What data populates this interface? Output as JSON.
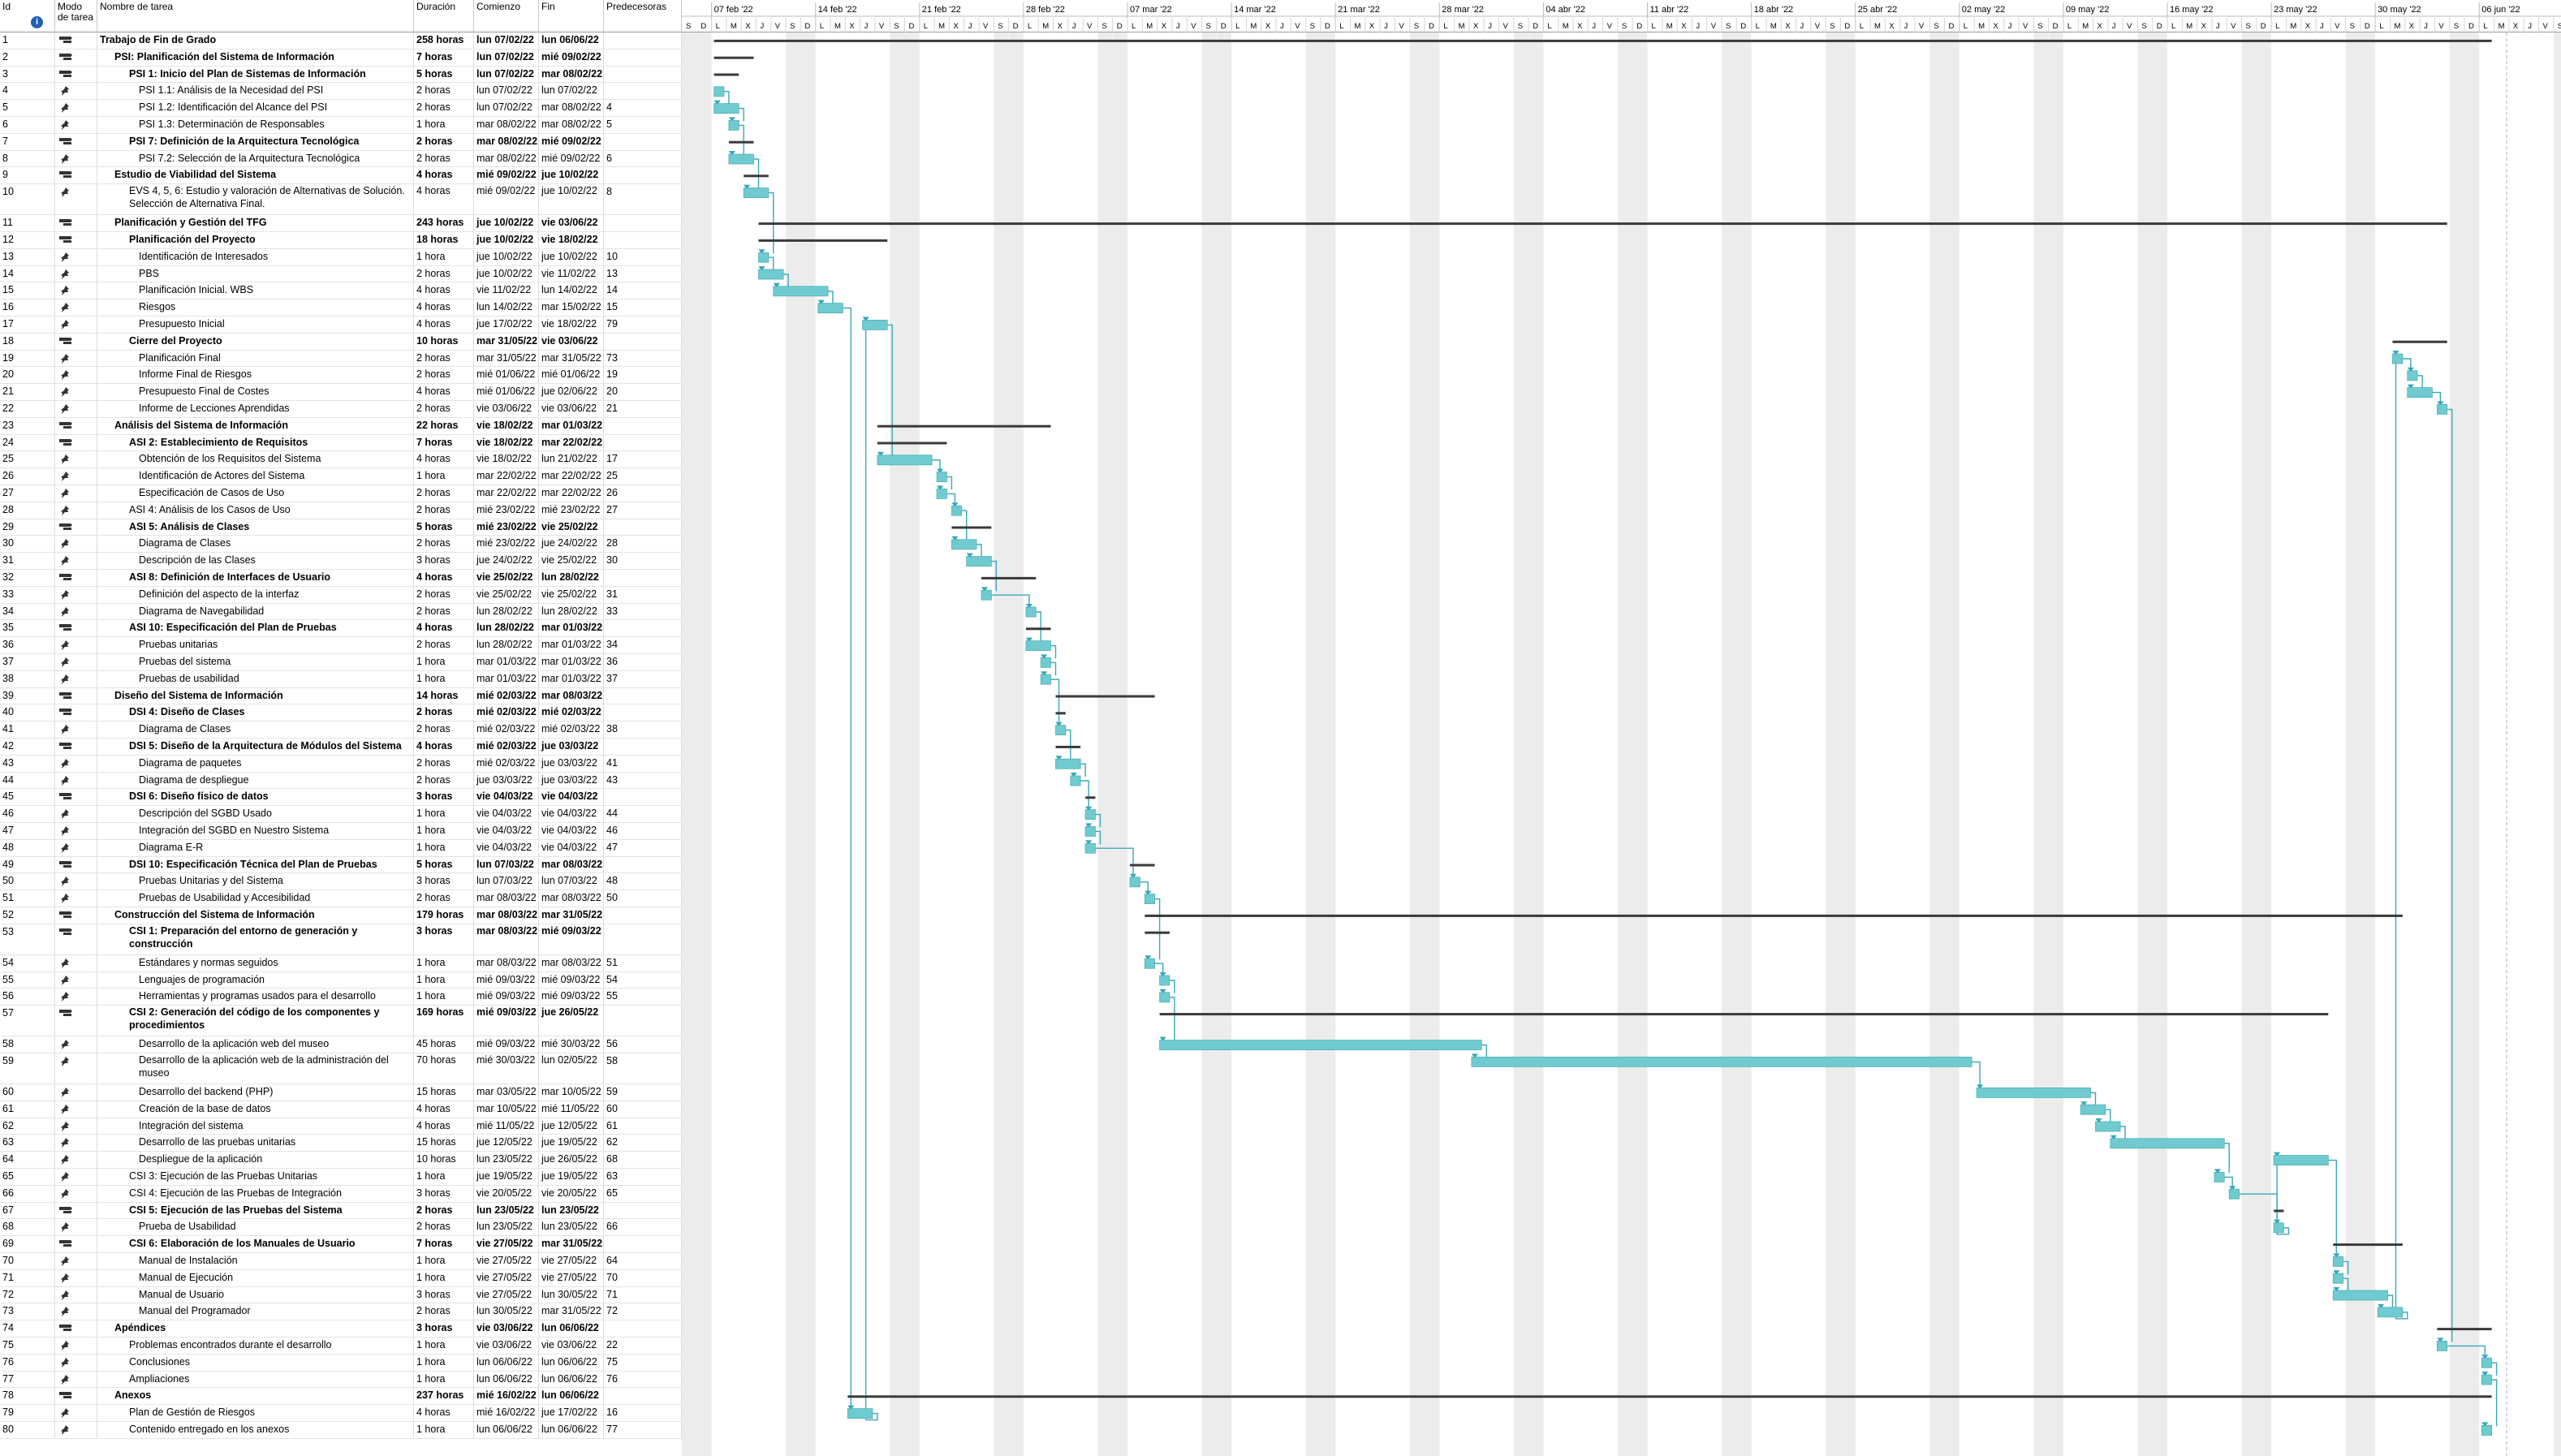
{
  "columns": {
    "id": "Id",
    "info": "i",
    "mode": "Modo de tarea",
    "name": "Nombre de tarea",
    "duration": "Duración",
    "start": "Comienzo",
    "end": "Fin",
    "pred": "Predecesoras"
  },
  "colors": {
    "bar": "#6fcbd0",
    "summary": "#3a3a3a",
    "link": "#3aa7ba",
    "weekend": "#ececec"
  },
  "timeline": {
    "weeks": [
      "07 feb '22",
      "14 feb '22",
      "21 feb '22",
      "28 feb '22",
      "07 mar '22",
      "14 mar '22",
      "21 mar '22",
      "28 mar '22",
      "04 abr '22",
      "11 abr '22",
      "18 abr '22",
      "25 abr '22",
      "02 may '22",
      "09 may '22",
      "16 may '22",
      "23 may '22",
      "30 may '22",
      "06 jun '22"
    ],
    "day_letters": [
      "L",
      "M",
      "X",
      "J",
      "V",
      "S",
      "D"
    ],
    "lead_letters": [
      "S",
      "D"
    ]
  },
  "tasks": [
    {
      "id": "1",
      "name": "Trabajo de Fin de Grado",
      "dur": "258 horas",
      "start": "lun 07/02/22",
      "end": "lun 06/06/22",
      "pred": "",
      "level": 0,
      "summary": true
    },
    {
      "id": "2",
      "name": "PSI: Planificación del Sistema de Información",
      "dur": "7 horas",
      "start": "lun 07/02/22",
      "end": "mié 09/02/22",
      "pred": "",
      "level": 1,
      "summary": true
    },
    {
      "id": "3",
      "name": "PSI 1: Inicio del Plan de Sistemas de Información",
      "dur": "5 horas",
      "start": "lun 07/02/22",
      "end": "mar 08/02/22",
      "pred": "",
      "level": 2,
      "summary": true
    },
    {
      "id": "4",
      "name": "PSI 1.1: Análisis de la Necesidad del PSI",
      "dur": "2 horas",
      "start": "lun 07/02/22",
      "end": "lun 07/02/22",
      "pred": "",
      "level": 3,
      "summary": false
    },
    {
      "id": "5",
      "name": "PSI 1.2: Identificación del Alcance del PSI",
      "dur": "2 horas",
      "start": "lun 07/02/22",
      "end": "mar 08/02/22",
      "pred": "4",
      "level": 3,
      "summary": false
    },
    {
      "id": "6",
      "name": "PSI 1.3: Determinación de Responsables",
      "dur": "1 hora",
      "start": "mar 08/02/22",
      "end": "mar 08/02/22",
      "pred": "5",
      "level": 3,
      "summary": false
    },
    {
      "id": "7",
      "name": "PSI 7: Definición de la Arquitectura Tecnológica",
      "dur": "2 horas",
      "start": "mar 08/02/22",
      "end": "mié 09/02/22",
      "pred": "",
      "level": 2,
      "summary": true
    },
    {
      "id": "8",
      "name": "PSI 7.2: Selección de la Arquitectura Tecnológica",
      "dur": "2 horas",
      "start": "mar 08/02/22",
      "end": "mié 09/02/22",
      "pred": "6",
      "level": 3,
      "summary": false
    },
    {
      "id": "9",
      "name": "Estudio de Viabilidad del Sistema",
      "dur": "4 horas",
      "start": "mié 09/02/22",
      "end": "jue 10/02/22",
      "pred": "",
      "level": 1,
      "summary": true
    },
    {
      "id": "10",
      "name": "EVS 4, 5, 6: Estudio y valoración de Alternativas de Solución. Selección de Alternativa Final.",
      "dur": "4 horas",
      "start": "mié 09/02/22",
      "end": "jue 10/02/22",
      "pred": "8",
      "level": 2,
      "summary": false,
      "tall": true
    },
    {
      "id": "11",
      "name": "Planificación y Gestión del TFG",
      "dur": "243 horas",
      "start": "jue 10/02/22",
      "end": "vie 03/06/22",
      "pred": "",
      "level": 1,
      "summary": true
    },
    {
      "id": "12",
      "name": "Planificación del Proyecto",
      "dur": "18 horas",
      "start": "jue 10/02/22",
      "end": "vie 18/02/22",
      "pred": "",
      "level": 2,
      "summary": true
    },
    {
      "id": "13",
      "name": "Identificación de Interesados",
      "dur": "1 hora",
      "start": "jue 10/02/22",
      "end": "jue 10/02/22",
      "pred": "10",
      "level": 3,
      "summary": false
    },
    {
      "id": "14",
      "name": "PBS",
      "dur": "2 horas",
      "start": "jue 10/02/22",
      "end": "vie 11/02/22",
      "pred": "13",
      "level": 3,
      "summary": false
    },
    {
      "id": "15",
      "name": "Planificación Inicial. WBS",
      "dur": "4 horas",
      "start": "vie 11/02/22",
      "end": "lun 14/02/22",
      "pred": "14",
      "level": 3,
      "summary": false
    },
    {
      "id": "16",
      "name": "Riesgos",
      "dur": "4 horas",
      "start": "lun 14/02/22",
      "end": "mar 15/02/22",
      "pred": "15",
      "level": 3,
      "summary": false
    },
    {
      "id": "17",
      "name": "Presupuesto Inicial",
      "dur": "4 horas",
      "start": "jue 17/02/22",
      "end": "vie 18/02/22",
      "pred": "79",
      "level": 3,
      "summary": false
    },
    {
      "id": "18",
      "name": "Cierre del Proyecto",
      "dur": "10 horas",
      "start": "mar 31/05/22",
      "end": "vie 03/06/22",
      "pred": "",
      "level": 2,
      "summary": true
    },
    {
      "id": "19",
      "name": "Planificación Final",
      "dur": "2 horas",
      "start": "mar 31/05/22",
      "end": "mar 31/05/22",
      "pred": "73",
      "level": 3,
      "summary": false
    },
    {
      "id": "20",
      "name": "Informe Final de Riesgos",
      "dur": "2 horas",
      "start": "mié 01/06/22",
      "end": "mié 01/06/22",
      "pred": "19",
      "level": 3,
      "summary": false
    },
    {
      "id": "21",
      "name": "Presupuesto Final de Costes",
      "dur": "4 horas",
      "start": "mié 01/06/22",
      "end": "jue 02/06/22",
      "pred": "20",
      "level": 3,
      "summary": false
    },
    {
      "id": "22",
      "name": "Informe de Lecciones Aprendidas",
      "dur": "2 horas",
      "start": "vie 03/06/22",
      "end": "vie 03/06/22",
      "pred": "21",
      "level": 3,
      "summary": false
    },
    {
      "id": "23",
      "name": "Análisis del Sistema de Información",
      "dur": "22 horas",
      "start": "vie 18/02/22",
      "end": "mar 01/03/22",
      "pred": "",
      "level": 1,
      "summary": true
    },
    {
      "id": "24",
      "name": "ASI 2: Establecimiento de Requisitos",
      "dur": "7 horas",
      "start": "vie 18/02/22",
      "end": "mar 22/02/22",
      "pred": "",
      "level": 2,
      "summary": true
    },
    {
      "id": "25",
      "name": "Obtención de los Requisitos del Sistema",
      "dur": "4 horas",
      "start": "vie 18/02/22",
      "end": "lun 21/02/22",
      "pred": "17",
      "level": 3,
      "summary": false
    },
    {
      "id": "26",
      "name": "Identificación de Actores del Sistema",
      "dur": "1 hora",
      "start": "mar 22/02/22",
      "end": "mar 22/02/22",
      "pred": "25",
      "level": 3,
      "summary": false
    },
    {
      "id": "27",
      "name": "Especificación de Casos de Uso",
      "dur": "2 horas",
      "start": "mar 22/02/22",
      "end": "mar 22/02/22",
      "pred": "26",
      "level": 3,
      "summary": false
    },
    {
      "id": "28",
      "name": "ASI 4: Análisis de los Casos de Uso",
      "dur": "2 horas",
      "start": "mié 23/02/22",
      "end": "mié 23/02/22",
      "pred": "27",
      "level": 2,
      "summary": false
    },
    {
      "id": "29",
      "name": "ASI 5: Análisis de Clases",
      "dur": "5 horas",
      "start": "mié 23/02/22",
      "end": "vie 25/02/22",
      "pred": "",
      "level": 2,
      "summary": true
    },
    {
      "id": "30",
      "name": "Diagrama de Clases",
      "dur": "2 horas",
      "start": "mié 23/02/22",
      "end": "jue 24/02/22",
      "pred": "28",
      "level": 3,
      "summary": false
    },
    {
      "id": "31",
      "name": "Descripción de las Clases",
      "dur": "3 horas",
      "start": "jue 24/02/22",
      "end": "vie 25/02/22",
      "pred": "30",
      "level": 3,
      "summary": false
    },
    {
      "id": "32",
      "name": "ASI 8: Definición de Interfaces de Usuario",
      "dur": "4 horas",
      "start": "vie 25/02/22",
      "end": "lun 28/02/22",
      "pred": "",
      "level": 2,
      "summary": true
    },
    {
      "id": "33",
      "name": "Definición del aspecto de la interfaz",
      "dur": "2 horas",
      "start": "vie 25/02/22",
      "end": "vie 25/02/22",
      "pred": "31",
      "level": 3,
      "summary": false
    },
    {
      "id": "34",
      "name": "Diagrama de Navegabilidad",
      "dur": "2 horas",
      "start": "lun 28/02/22",
      "end": "lun 28/02/22",
      "pred": "33",
      "level": 3,
      "summary": false
    },
    {
      "id": "35",
      "name": "ASI 10: Especificación del Plan de Pruebas",
      "dur": "4 horas",
      "start": "lun 28/02/22",
      "end": "mar 01/03/22",
      "pred": "",
      "level": 2,
      "summary": true
    },
    {
      "id": "36",
      "name": "Pruebas unitarias",
      "dur": "2 horas",
      "start": "lun 28/02/22",
      "end": "mar 01/03/22",
      "pred": "34",
      "level": 3,
      "summary": false
    },
    {
      "id": "37",
      "name": "Pruebas del sistema",
      "dur": "1 hora",
      "start": "mar 01/03/22",
      "end": "mar 01/03/22",
      "pred": "36",
      "level": 3,
      "summary": false
    },
    {
      "id": "38",
      "name": "Pruebas de usabilidad",
      "dur": "1 hora",
      "start": "mar 01/03/22",
      "end": "mar 01/03/22",
      "pred": "37",
      "level": 3,
      "summary": false
    },
    {
      "id": "39",
      "name": "Diseño del Sistema de Información",
      "dur": "14 horas",
      "start": "mié 02/03/22",
      "end": "mar 08/03/22",
      "pred": "",
      "level": 1,
      "summary": true
    },
    {
      "id": "40",
      "name": "DSI 4: Diseño de Clases",
      "dur": "2 horas",
      "start": "mié 02/03/22",
      "end": "mié 02/03/22",
      "pred": "",
      "level": 2,
      "summary": true
    },
    {
      "id": "41",
      "name": "Diagrama de Clases",
      "dur": "2 horas",
      "start": "mié 02/03/22",
      "end": "mié 02/03/22",
      "pred": "38",
      "level": 3,
      "summary": false
    },
    {
      "id": "42",
      "name": "DSI 5: Diseño de la Arquitectura de Módulos del Sistema",
      "dur": "4 horas",
      "start": "mié 02/03/22",
      "end": "jue 03/03/22",
      "pred": "",
      "level": 2,
      "summary": true
    },
    {
      "id": "43",
      "name": "Diagrama de paquetes",
      "dur": "2 horas",
      "start": "mié 02/03/22",
      "end": "jue 03/03/22",
      "pred": "41",
      "level": 3,
      "summary": false
    },
    {
      "id": "44",
      "name": "Diagrama de despliegue",
      "dur": "2 horas",
      "start": "jue 03/03/22",
      "end": "jue 03/03/22",
      "pred": "43",
      "level": 3,
      "summary": false
    },
    {
      "id": "45",
      "name": "DSI 6: Diseño físico de datos",
      "dur": "3 horas",
      "start": "vie 04/03/22",
      "end": "vie 04/03/22",
      "pred": "",
      "level": 2,
      "summary": true
    },
    {
      "id": "46",
      "name": "Descripción del SGBD Usado",
      "dur": "1 hora",
      "start": "vie 04/03/22",
      "end": "vie 04/03/22",
      "pred": "44",
      "level": 3,
      "summary": false
    },
    {
      "id": "47",
      "name": "Integración del SGBD en Nuestro Sistema",
      "dur": "1 hora",
      "start": "vie 04/03/22",
      "end": "vie 04/03/22",
      "pred": "46",
      "level": 3,
      "summary": false
    },
    {
      "id": "48",
      "name": "Diagrama E-R",
      "dur": "1 hora",
      "start": "vie 04/03/22",
      "end": "vie 04/03/22",
      "pred": "47",
      "level": 3,
      "summary": false
    },
    {
      "id": "49",
      "name": "DSI 10: Especificación Técnica del Plan de Pruebas",
      "dur": "5 horas",
      "start": "lun 07/03/22",
      "end": "mar 08/03/22",
      "pred": "",
      "level": 2,
      "summary": true
    },
    {
      "id": "50",
      "name": "Pruebas Unitarias y del Sistema",
      "dur": "3 horas",
      "start": "lun 07/03/22",
      "end": "lun 07/03/22",
      "pred": "48",
      "level": 3,
      "summary": false
    },
    {
      "id": "51",
      "name": "Pruebas de Usabilidad y Accesibilidad",
      "dur": "2 horas",
      "start": "mar 08/03/22",
      "end": "mar 08/03/22",
      "pred": "50",
      "level": 3,
      "summary": false
    },
    {
      "id": "52",
      "name": "Construcción del Sistema de Información",
      "dur": "179 horas",
      "start": "mar 08/03/22",
      "end": "mar 31/05/22",
      "pred": "",
      "level": 1,
      "summary": true
    },
    {
      "id": "53",
      "name": "CSI 1: Preparación del entorno de generación y construcción",
      "dur": "3 horas",
      "start": "mar 08/03/22",
      "end": "mié 09/03/22",
      "pred": "",
      "level": 2,
      "summary": true,
      "tall": true
    },
    {
      "id": "54",
      "name": "Estándares y normas seguidos",
      "dur": "1 hora",
      "start": "mar 08/03/22",
      "end": "mar 08/03/22",
      "pred": "51",
      "level": 3,
      "summary": false
    },
    {
      "id": "55",
      "name": "Lenguajes de programación",
      "dur": "1 hora",
      "start": "mié 09/03/22",
      "end": "mié 09/03/22",
      "pred": "54",
      "level": 3,
      "summary": false
    },
    {
      "id": "56",
      "name": "Herramientas y programas usados para el desarrollo",
      "dur": "1 hora",
      "start": "mié 09/03/22",
      "end": "mié 09/03/22",
      "pred": "55",
      "level": 3,
      "summary": false
    },
    {
      "id": "57",
      "name": "CSI 2: Generación del código de los componentes y procedimientos",
      "dur": "169 horas",
      "start": "mié 09/03/22",
      "end": "jue 26/05/22",
      "pred": "",
      "level": 2,
      "summary": true,
      "tall": true
    },
    {
      "id": "58",
      "name": "Desarrollo de la aplicación web del museo",
      "dur": "45 horas",
      "start": "mié 09/03/22",
      "end": "mié 30/03/22",
      "pred": "56",
      "level": 3,
      "summary": false
    },
    {
      "id": "59",
      "name": "Desarrollo de la aplicación web de la administración del museo",
      "dur": "70 horas",
      "start": "mié 30/03/22",
      "end": "lun 02/05/22",
      "pred": "58",
      "level": 3,
      "summary": false,
      "tall": true
    },
    {
      "id": "60",
      "name": "Desarrollo del backend (PHP)",
      "dur": "15 horas",
      "start": "mar 03/05/22",
      "end": "mar 10/05/22",
      "pred": "59",
      "level": 3,
      "summary": false
    },
    {
      "id": "61",
      "name": "Creación de la base de datos",
      "dur": "4 horas",
      "start": "mar 10/05/22",
      "end": "mié 11/05/22",
      "pred": "60",
      "level": 3,
      "summary": false
    },
    {
      "id": "62",
      "name": "Integración del sistema",
      "dur": "4 horas",
      "start": "mié 11/05/22",
      "end": "jue 12/05/22",
      "pred": "61",
      "level": 3,
      "summary": false
    },
    {
      "id": "63",
      "name": "Desarrollo de las pruebas unitarias",
      "dur": "15 horas",
      "start": "jue 12/05/22",
      "end": "jue 19/05/22",
      "pred": "62",
      "level": 3,
      "summary": false
    },
    {
      "id": "64",
      "name": "Despliegue de la aplicación",
      "dur": "10 horas",
      "start": "lun 23/05/22",
      "end": "jue 26/05/22",
      "pred": "68",
      "level": 3,
      "summary": false
    },
    {
      "id": "65",
      "name": "CSI 3: Ejecución de las Pruebas Unitarias",
      "dur": "1 hora",
      "start": "jue 19/05/22",
      "end": "jue 19/05/22",
      "pred": "63",
      "level": 2,
      "summary": false
    },
    {
      "id": "66",
      "name": "CSI 4: Ejecución de las Pruebas de Integración",
      "dur": "3 horas",
      "start": "vie 20/05/22",
      "end": "vie 20/05/22",
      "pred": "65",
      "level": 2,
      "summary": false
    },
    {
      "id": "67",
      "name": "CSI 5: Ejecución de las Pruebas del Sistema",
      "dur": "2 horas",
      "start": "lun 23/05/22",
      "end": "lun 23/05/22",
      "pred": "",
      "level": 2,
      "summary": true
    },
    {
      "id": "68",
      "name": "Prueba de Usabilidad",
      "dur": "2 horas",
      "start": "lun 23/05/22",
      "end": "lun 23/05/22",
      "pred": "66",
      "level": 3,
      "summary": false
    },
    {
      "id": "69",
      "name": "CSI 6: Elaboración de los Manuales de Usuario",
      "dur": "7 horas",
      "start": "vie 27/05/22",
      "end": "mar 31/05/22",
      "pred": "",
      "level": 2,
      "summary": true
    },
    {
      "id": "70",
      "name": "Manual de Instalación",
      "dur": "1 hora",
      "start": "vie 27/05/22",
      "end": "vie 27/05/22",
      "pred": "64",
      "level": 3,
      "summary": false
    },
    {
      "id": "71",
      "name": "Manual de Ejecución",
      "dur": "1 hora",
      "start": "vie 27/05/22",
      "end": "vie 27/05/22",
      "pred": "70",
      "level": 3,
      "summary": false
    },
    {
      "id": "72",
      "name": "Manual de Usuario",
      "dur": "3 horas",
      "start": "vie 27/05/22",
      "end": "lun 30/05/22",
      "pred": "71",
      "level": 3,
      "summary": false
    },
    {
      "id": "73",
      "name": "Manual del Programador",
      "dur": "2 horas",
      "start": "lun 30/05/22",
      "end": "mar 31/05/22",
      "pred": "72",
      "level": 3,
      "summary": false
    },
    {
      "id": "74",
      "name": "Apéndices",
      "dur": "3 horas",
      "start": "vie 03/06/22",
      "end": "lun 06/06/22",
      "pred": "",
      "level": 1,
      "summary": true
    },
    {
      "id": "75",
      "name": "Problemas encontrados durante el desarrollo",
      "dur": "1 hora",
      "start": "vie 03/06/22",
      "end": "vie 03/06/22",
      "pred": "22",
      "level": 2,
      "summary": false
    },
    {
      "id": "76",
      "name": "Conclusiones",
      "dur": "1 hora",
      "start": "lun 06/06/22",
      "end": "lun 06/06/22",
      "pred": "75",
      "level": 2,
      "summary": false
    },
    {
      "id": "77",
      "name": "Ampliaciones",
      "dur": "1 hora",
      "start": "lun 06/06/22",
      "end": "lun 06/06/22",
      "pred": "76",
      "level": 2,
      "summary": false
    },
    {
      "id": "78",
      "name": "Anexos",
      "dur": "237 horas",
      "start": "mié 16/02/22",
      "end": "lun 06/06/22",
      "pred": "",
      "level": 1,
      "summary": true
    },
    {
      "id": "79",
      "name": "Plan de Gestión de Riesgos",
      "dur": "4 horas",
      "start": "mié 16/02/22",
      "end": "jue 17/02/22",
      "pred": "16",
      "level": 2,
      "summary": false
    },
    {
      "id": "80",
      "name": "Contenido entregado en los anexos",
      "dur": "1 hora",
      "start": "lun 06/06/22",
      "end": "lun 06/06/22",
      "pred": "77",
      "level": 2,
      "summary": false
    }
  ]
}
